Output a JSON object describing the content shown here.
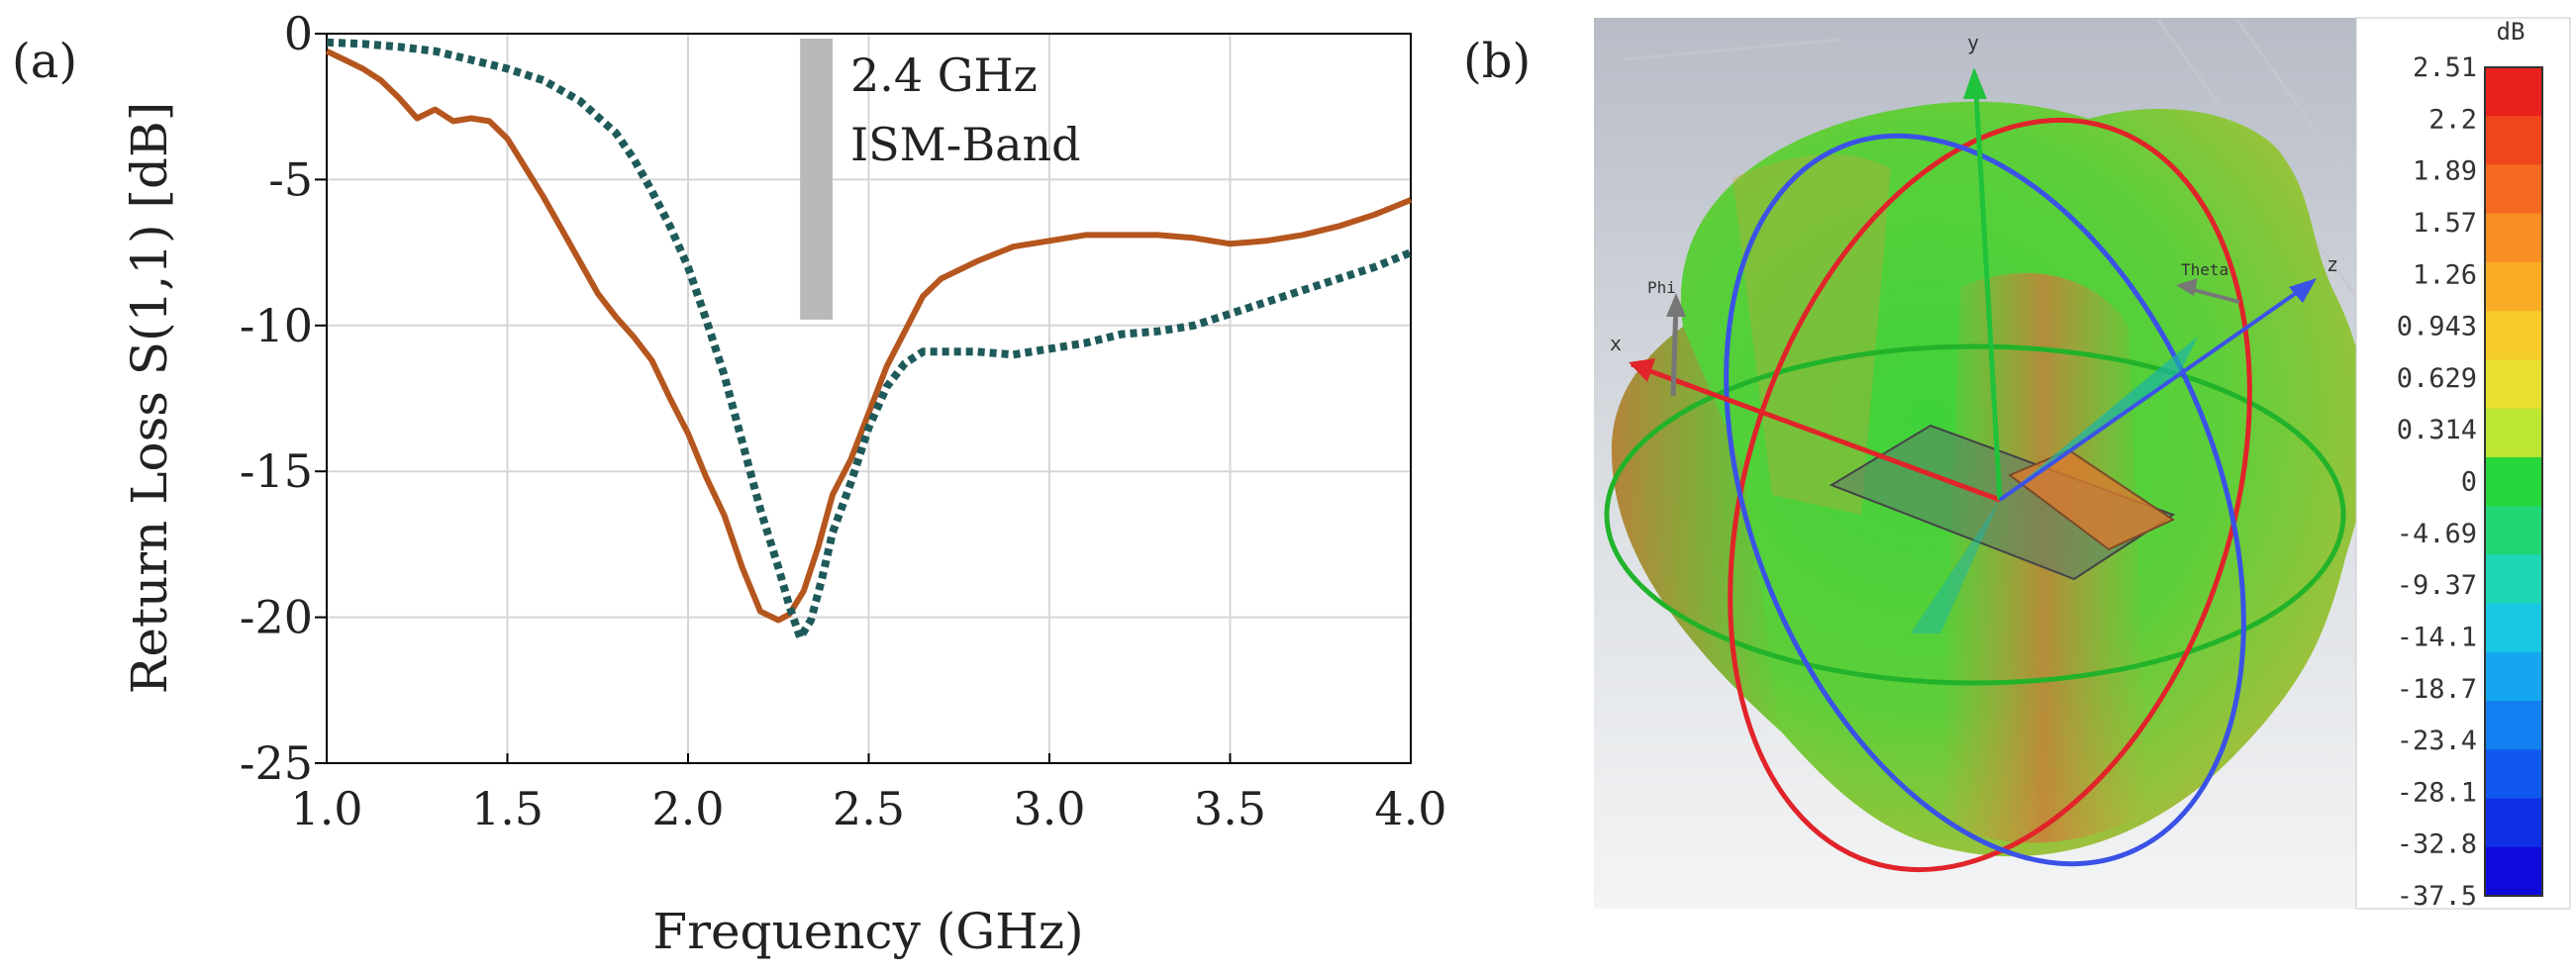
{
  "panel_a_label": "(a)",
  "panel_b_label": "(b)",
  "chart_data": {
    "type": "line",
    "title": "",
    "xlabel": "Frequency (GHz)",
    "ylabel": "Return Loss S(1,1) [dB]",
    "xlim": [
      1.0,
      4.0
    ],
    "ylim": [
      -25,
      0
    ],
    "x_ticks": [
      1.0,
      1.5,
      2.0,
      2.5,
      3.0,
      3.5,
      4.0
    ],
    "x_tick_labels": [
      "1.0",
      "1.5",
      "2.0",
      "2.5",
      "3.0",
      "3.5",
      "4.0"
    ],
    "y_ticks": [
      0,
      -5,
      -10,
      -15,
      -20,
      -25
    ],
    "y_tick_labels": [
      "0",
      "-5",
      "-10",
      "-15",
      "-20",
      "-25"
    ],
    "grid": true,
    "annotation": {
      "lines": [
        "2.4 GHz",
        "ISM-Band"
      ],
      "band_x": [
        2.31,
        2.4
      ],
      "band_y": [
        0,
        -9.8
      ]
    },
    "series": [
      {
        "name": "solid",
        "color": "#b5561e",
        "style": "solid",
        "x": [
          1.0,
          1.05,
          1.1,
          1.15,
          1.2,
          1.25,
          1.3,
          1.35,
          1.4,
          1.45,
          1.5,
          1.55,
          1.6,
          1.65,
          1.7,
          1.75,
          1.8,
          1.85,
          1.9,
          1.95,
          2.0,
          2.05,
          2.1,
          2.15,
          2.2,
          2.25,
          2.28,
          2.32,
          2.36,
          2.4,
          2.45,
          2.5,
          2.55,
          2.6,
          2.65,
          2.7,
          2.8,
          2.9,
          3.0,
          3.1,
          3.2,
          3.3,
          3.4,
          3.5,
          3.6,
          3.7,
          3.8,
          3.9,
          4.0
        ],
        "values": [
          -0.6,
          -0.9,
          -1.2,
          -1.6,
          -2.2,
          -2.9,
          -2.6,
          -3.0,
          -2.9,
          -3.0,
          -3.6,
          -4.6,
          -5.6,
          -6.7,
          -7.8,
          -8.9,
          -9.7,
          -10.4,
          -11.2,
          -12.5,
          -13.7,
          -15.2,
          -16.5,
          -18.3,
          -19.8,
          -20.1,
          -19.9,
          -19.1,
          -17.6,
          -15.8,
          -14.6,
          -13.0,
          -11.4,
          -10.2,
          -9.0,
          -8.4,
          -7.8,
          -7.3,
          -7.1,
          -6.9,
          -6.9,
          -6.9,
          -7.0,
          -7.2,
          -7.1,
          -6.9,
          -6.6,
          -6.2,
          -5.7
        ]
      },
      {
        "name": "dotted",
        "color": "#1f5a5a",
        "style": "dotted",
        "x": [
          1.0,
          1.1,
          1.2,
          1.3,
          1.4,
          1.5,
          1.6,
          1.7,
          1.8,
          1.85,
          1.9,
          1.95,
          2.0,
          2.05,
          2.1,
          2.15,
          2.2,
          2.25,
          2.28,
          2.31,
          2.34,
          2.37,
          2.4,
          2.45,
          2.5,
          2.55,
          2.6,
          2.65,
          2.7,
          2.8,
          2.9,
          3.0,
          3.1,
          3.2,
          3.3,
          3.4,
          3.5,
          3.6,
          3.7,
          3.8,
          3.9,
          4.0
        ],
        "values": [
          -0.3,
          -0.35,
          -0.45,
          -0.6,
          -0.9,
          -1.2,
          -1.6,
          -2.3,
          -3.4,
          -4.3,
          -5.4,
          -6.6,
          -8.0,
          -9.8,
          -11.7,
          -14.0,
          -16.3,
          -18.3,
          -19.6,
          -20.7,
          -20.1,
          -18.7,
          -17.1,
          -15.4,
          -13.5,
          -12.1,
          -11.3,
          -10.9,
          -10.9,
          -10.9,
          -11.0,
          -10.8,
          -10.6,
          -10.3,
          -10.2,
          -10.0,
          -9.6,
          -9.2,
          -8.8,
          -8.4,
          -8.0,
          -7.5
        ]
      }
    ]
  },
  "pattern_3d": {
    "axes": {
      "x": "x",
      "y": "y",
      "z": "z",
      "phi": "Phi",
      "theta": "Theta"
    },
    "colorbar": {
      "unit": "dB",
      "labels": [
        "2.51",
        "2.2",
        "1.89",
        "1.57",
        "1.26",
        "0.943",
        "0.629",
        "0.314",
        "0",
        "-4.69",
        "-9.37",
        "-14.1",
        "-18.7",
        "-23.4",
        "-28.1",
        "-32.8",
        "-37.5"
      ],
      "colors": [
        "#e8201e",
        "#f0461e",
        "#f56a20",
        "#f88e22",
        "#f9ad26",
        "#f7cc2a",
        "#e8e02e",
        "#bde632",
        "#26d63a",
        "#22d676",
        "#1fd6b6",
        "#18c8e0",
        "#14a6ee",
        "#1280f0",
        "#1158f0",
        "#1030e8",
        "#0e0adc"
      ]
    }
  }
}
